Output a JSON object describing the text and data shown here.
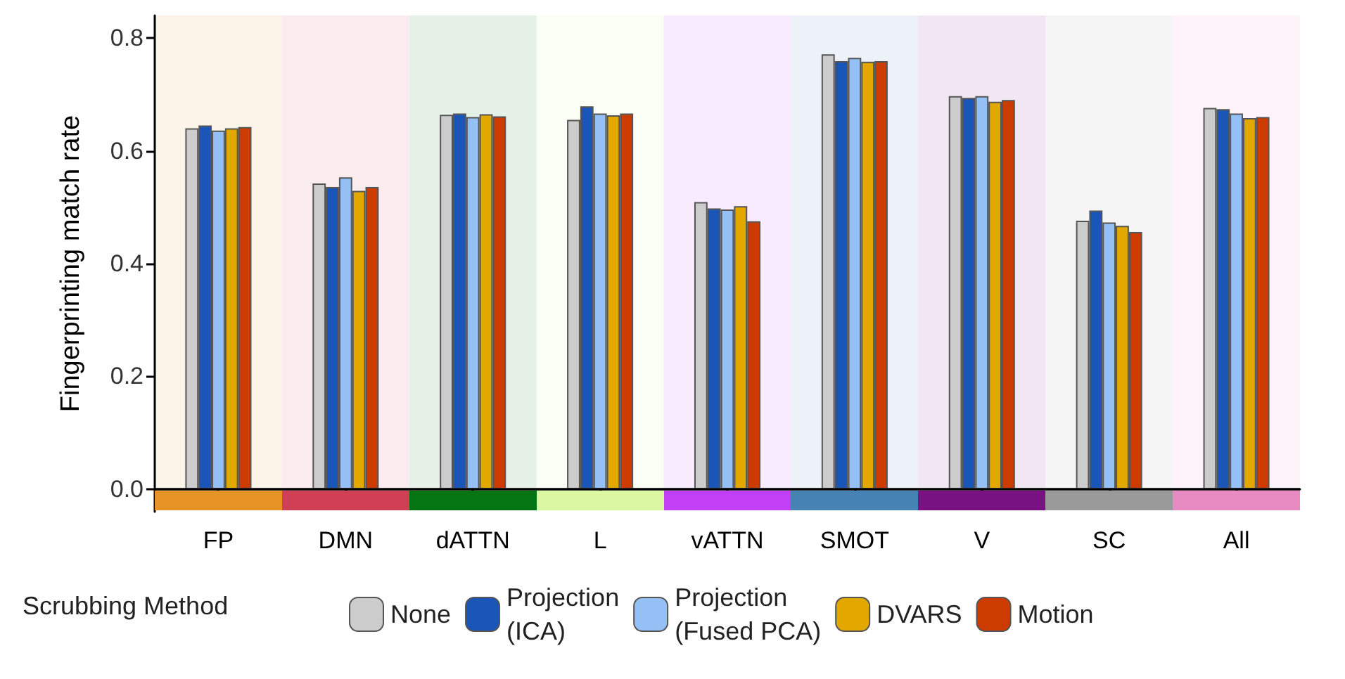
{
  "chart_data": {
    "type": "bar",
    "ylabel": "Fingerprinting match rate",
    "legend_title": "Scrubbing Method",
    "categories": [
      "FP",
      "DMN",
      "dATTN",
      "L",
      "vATTN",
      "SMOT",
      "V",
      "SC",
      "All"
    ],
    "series": [
      {
        "name": "None",
        "color": "#cccccc",
        "values": [
          0.64,
          0.542,
          0.664,
          0.655,
          0.509,
          0.771,
          0.697,
          0.476,
          0.676
        ]
      },
      {
        "name": "Projection\n(ICA)",
        "color": "#1a56b8",
        "values": [
          0.645,
          0.536,
          0.666,
          0.679,
          0.498,
          0.759,
          0.694,
          0.494,
          0.674
        ]
      },
      {
        "name": "Projection\n(Fused PCA)",
        "color": "#94c0f5",
        "values": [
          0.636,
          0.553,
          0.66,
          0.666,
          0.496,
          0.765,
          0.697,
          0.473,
          0.666
        ]
      },
      {
        "name": "DVARS",
        "color": "#e2a800",
        "values": [
          0.64,
          0.529,
          0.665,
          0.663,
          0.502,
          0.758,
          0.687,
          0.467,
          0.658
        ]
      },
      {
        "name": "Motion",
        "color": "#cc3b00",
        "values": [
          0.642,
          0.536,
          0.661,
          0.666,
          0.475,
          0.759,
          0.69,
          0.456,
          0.66
        ]
      }
    ],
    "bands": [
      {
        "axis": "x",
        "from": "FP",
        "to": "FP",
        "color": "#e69224"
      },
      {
        "axis": "x",
        "from": "DMN",
        "to": "DMN",
        "color": "#cf4055"
      },
      {
        "axis": "x",
        "from": "dATTN",
        "to": "dATTN",
        "color": "#047512"
      },
      {
        "axis": "x",
        "from": "L",
        "to": "L",
        "color": "#daf7a1"
      },
      {
        "axis": "x",
        "from": "vATTN",
        "to": "vATTN",
        "color": "#c33ff5"
      },
      {
        "axis": "x",
        "from": "SMOT",
        "to": "SMOT",
        "color": "#4682b4"
      },
      {
        "axis": "x",
        "from": "V",
        "to": "V",
        "color": "#781282"
      },
      {
        "axis": "x",
        "from": "SC",
        "to": "SC",
        "color": "#9a9a9a"
      },
      {
        "axis": "x",
        "from": "All",
        "to": "All",
        "color": "#e88bc2"
      }
    ],
    "ylim": [
      -0.04,
      0.84
    ],
    "yticks": [
      {
        "value": 0,
        "label": "0.0"
      },
      {
        "value": 0.2,
        "label": "0.2"
      },
      {
        "value": 0.4,
        "label": "0.4"
      },
      {
        "value": 0.6,
        "label": "0.6"
      },
      {
        "value": 0.8,
        "label": "0.8"
      }
    ],
    "grid": false,
    "legend": "bottom"
  }
}
